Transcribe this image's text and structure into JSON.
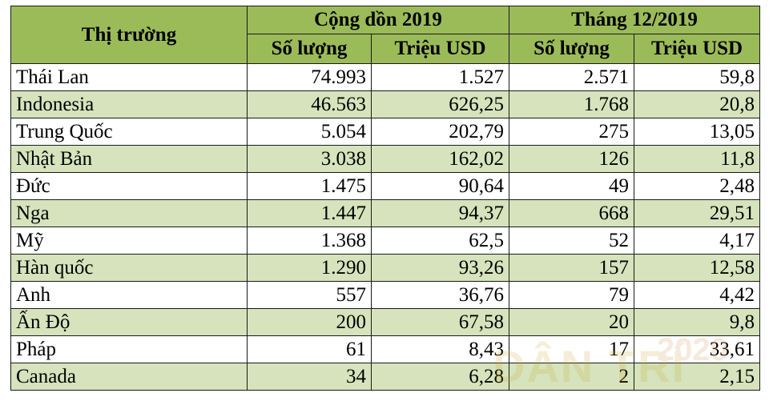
{
  "table": {
    "header": {
      "market": "Thị trường",
      "group1": "Cộng dồn 2019",
      "group2": "Tháng 12/2019",
      "sub_quantity_1": "Số lượng",
      "sub_usd_1": "Triệu USD",
      "sub_quantity_2": "Số lượng",
      "sub_usd_2": "Triệu USD"
    },
    "rows": [
      {
        "market": "Thái Lan",
        "cum_qty": "74.993",
        "cum_usd": "1.527",
        "dec_qty": "2.571",
        "dec_usd": "59,8"
      },
      {
        "market": "Indonesia",
        "cum_qty": "46.563",
        "cum_usd": "626,25",
        "dec_qty": "1.768",
        "dec_usd": "20,8"
      },
      {
        "market": "Trung Quốc",
        "cum_qty": "5.054",
        "cum_usd": "202,79",
        "dec_qty": "275",
        "dec_usd": "13,05"
      },
      {
        "market": "Nhật Bản",
        "cum_qty": "3.038",
        "cum_usd": "162,02",
        "dec_qty": "126",
        "dec_usd": "11,8"
      },
      {
        "market": "Đức",
        "cum_qty": "1.475",
        "cum_usd": "90,64",
        "dec_qty": "49",
        "dec_usd": "2,48"
      },
      {
        "market": "Nga",
        "cum_qty": "1.447",
        "cum_usd": "94,37",
        "dec_qty": "668",
        "dec_usd": "29,51"
      },
      {
        "market": "Mỹ",
        "cum_qty": "1.368",
        "cum_usd": "62,5",
        "dec_qty": "52",
        "dec_usd": "4,17"
      },
      {
        "market": "Hàn quốc",
        "cum_qty": "1.290",
        "cum_usd": "93,26",
        "dec_qty": "157",
        "dec_usd": "12,58"
      },
      {
        "market": "Anh",
        "cum_qty": "557",
        "cum_usd": "36,76",
        "dec_qty": "79",
        "dec_usd": "4,42"
      },
      {
        "market": "Ấn Độ",
        "cum_qty": "200",
        "cum_usd": "67,58",
        "dec_qty": "20",
        "dec_usd": "9,8"
      },
      {
        "market": "Pháp",
        "cum_qty": "61",
        "cum_usd": "8,43",
        "dec_qty": "17",
        "dec_usd": "33,61"
      },
      {
        "market": "Canada",
        "cum_qty": "34",
        "cum_usd": "6,28",
        "dec_qty": "2",
        "dec_usd": "2,15"
      }
    ]
  },
  "watermark": {
    "brand": "DÂN TRÍ",
    "year": "2020"
  },
  "colors": {
    "header_bg": "#9bbb59",
    "alt_row_bg": "#d6e3bc",
    "border": "#1a1a1a"
  }
}
